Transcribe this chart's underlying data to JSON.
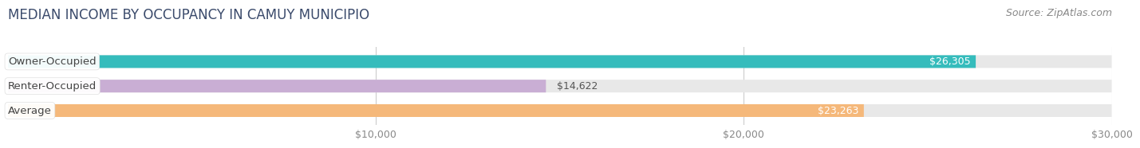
{
  "title": "MEDIAN INCOME BY OCCUPANCY IN CAMUY MUNICIPIO",
  "source": "Source: ZipAtlas.com",
  "categories": [
    "Owner-Occupied",
    "Renter-Occupied",
    "Average"
  ],
  "values": [
    26305,
    14622,
    23263
  ],
  "bar_colors": [
    "#35bcbc",
    "#c9aed4",
    "#f5b87a"
  ],
  "bar_labels": [
    "$26,305",
    "$14,622",
    "$23,263"
  ],
  "label_inside": [
    true,
    false,
    true
  ],
  "xlim": [
    0,
    30000
  ],
  "xticks": [
    10000,
    20000,
    30000
  ],
  "xtick_labels": [
    "$10,000",
    "$20,000",
    "$30,000"
  ],
  "background_color": "#ffffff",
  "bar_bg_color": "#e8e8e8",
  "title_fontsize": 12,
  "source_fontsize": 9,
  "tick_fontsize": 9,
  "label_fontsize": 9,
  "cat_fontsize": 9.5,
  "bar_height": 0.52,
  "title_color": "#3a4a6b"
}
